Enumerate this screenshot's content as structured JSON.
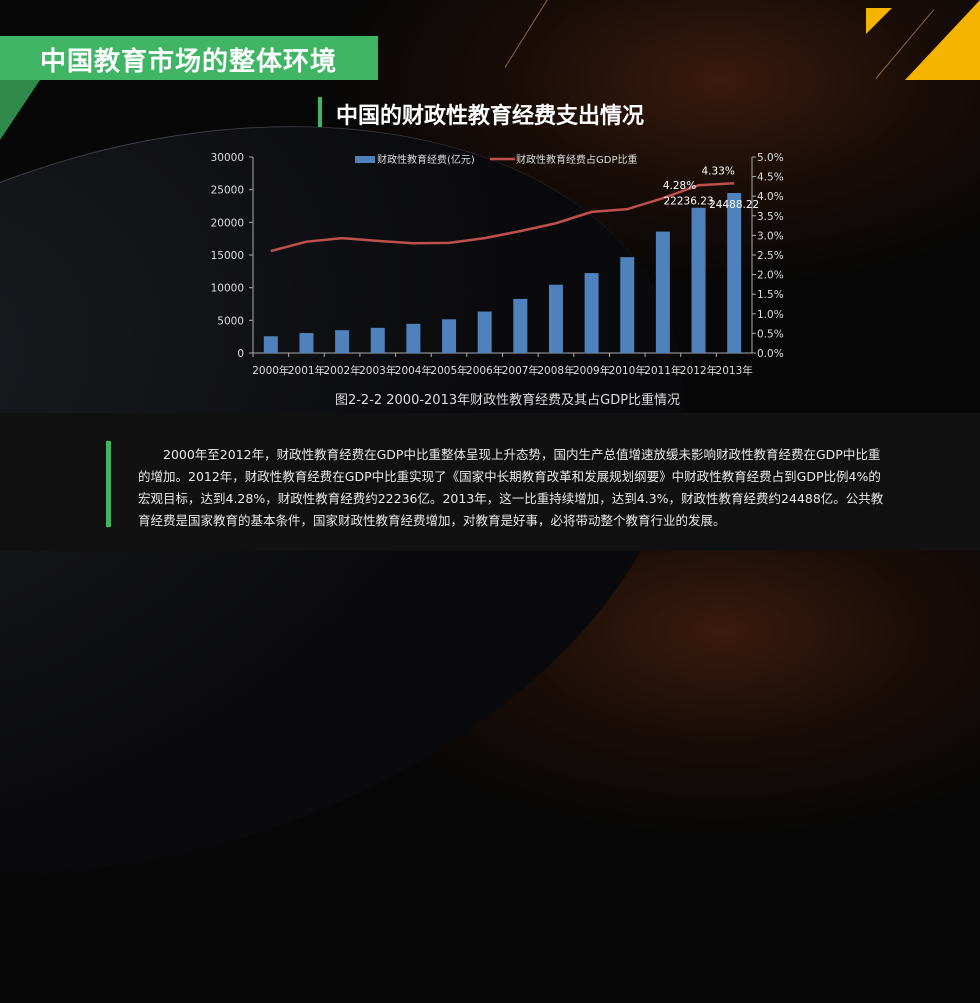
{
  "header": {
    "title": "中国教育市场的整体环境",
    "subtitle": "中国的财政性教育经费支出情况"
  },
  "colors": {
    "accent_green": "#3fb565",
    "accent_yellow": "#f5b400",
    "bar": "#4f81bd",
    "line": "#c0504d"
  },
  "chart_data": {
    "type": "bar+line",
    "categories": [
      "2000年",
      "2001年",
      "2002年",
      "2003年",
      "2004年",
      "2005年",
      "2006年",
      "2007年",
      "2008年",
      "2009年",
      "2010年",
      "2011年",
      "2012年",
      "2013年"
    ],
    "series": [
      {
        "name": "财政性教育经费(亿元)",
        "type": "bar",
        "axis": "left",
        "values": [
          2563,
          3057,
          3491,
          3851,
          4466,
          5161,
          6348,
          8280,
          10450,
          12231,
          14670,
          18587,
          22236.23,
          24488.22
        ]
      },
      {
        "name": "财政性教育经费占GDP比重",
        "type": "line",
        "axis": "right",
        "values": [
          2.6,
          2.84,
          2.93,
          2.86,
          2.8,
          2.81,
          2.93,
          3.11,
          3.31,
          3.6,
          3.67,
          3.95,
          4.28,
          4.33
        ]
      }
    ],
    "left_axis": {
      "ylim": [
        0,
        30000
      ],
      "ticks": [
        "0",
        "5000",
        "10000",
        "15000",
        "20000",
        "25000",
        "30000"
      ]
    },
    "right_axis": {
      "ylim": [
        0,
        5
      ],
      "ticks": [
        "0.0%",
        "0.5%",
        "1.0%",
        "1.5%",
        "2.0%",
        "2.5%",
        "3.0%",
        "3.5%",
        "4.0%",
        "4.5%",
        "5.0%"
      ]
    },
    "data_labels": {
      "bar_2012": "22236.23",
      "bar_2013": "24488.22",
      "line_2012": "4.28%",
      "line_2013": "4.33%"
    },
    "legend_position": "top",
    "caption": "图2-2-2 2000-2013年财政性教育经费及其占GDP比重情况"
  },
  "paragraph": "2000年至2012年，财政性教育经费在GDP中比重整体呈现上升态势，国内生产总值增速放缓未影响财政性教育经费在GDP中比重的增加。2012年，财政性教育经费在GDP中比重实现了《国家中长期教育改革和发展规划纲要》中财政性教育经费占到GDP比例4%的宏观目标，达到4.28%，财政性教育经费约22236亿。2013年，这一比重持续增加，达到4.3%，财政性教育经费约24488亿。公共教育经费是国家教育的基本条件，国家财政性教育经费增加，对教育是好事，必将带动整个教育行业的发展。"
}
